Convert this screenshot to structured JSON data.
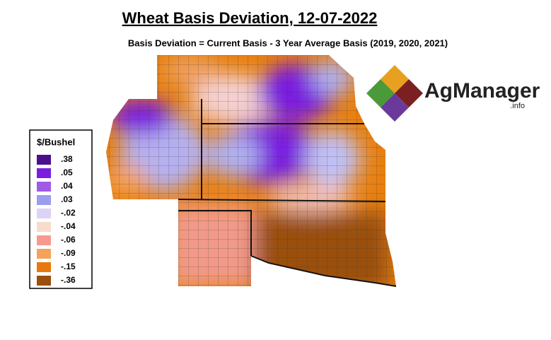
{
  "header": {
    "title": "Wheat Basis Deviation, 12-07-2022",
    "subtitle": "Basis Deviation = Current Basis - 3 Year Average Basis (2019, 2020, 2021)"
  },
  "legend": {
    "title": "$/Bushel",
    "items": [
      {
        "label": ".38",
        "color": "#4b0f8c"
      },
      {
        "label": ".05",
        "color": "#7a1de0"
      },
      {
        "label": ".04",
        "color": "#a15ae8"
      },
      {
        "label": ".03",
        "color": "#9c9cf0"
      },
      {
        "label": "-.02",
        "color": "#ddd4f5"
      },
      {
        "label": "-.04",
        "color": "#f7dccc"
      },
      {
        "label": "-.06",
        "color": "#f59a8e"
      },
      {
        "label": "-.09",
        "color": "#f5a25a"
      },
      {
        "label": "-.15",
        "color": "#e8780c"
      },
      {
        "label": "-.36",
        "color": "#9a4f0c"
      }
    ]
  },
  "logo": {
    "name": "AgManager",
    "suffix": ".info"
  }
}
